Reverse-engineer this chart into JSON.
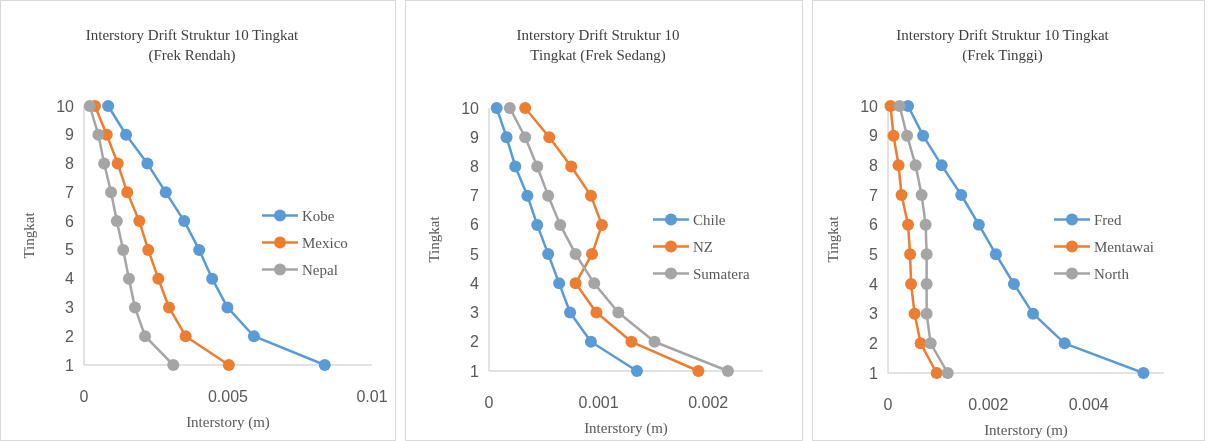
{
  "chart_data": [
    {
      "type": "line",
      "title": "Interstory Drift Struktur 10 Tingkat (Frek Rendah)",
      "xlabel": "Interstory (m)",
      "ylabel": "Tingkat",
      "xlim": [
        0,
        0.01
      ],
      "xticks": [
        0,
        0.005,
        0.01
      ],
      "ylim": [
        1,
        10
      ],
      "yticks": [
        1,
        2,
        3,
        4,
        5,
        6,
        7,
        8,
        9,
        10
      ],
      "marker": "circle",
      "legend": "right",
      "grid": false,
      "series": [
        {
          "name": "Kobe",
          "color": "#5b9bd5",
          "x": [
            0.00836,
            0.0059,
            0.00498,
            0.00445,
            0.004,
            0.00348,
            0.00284,
            0.0022,
            0.00146,
            0.00084
          ],
          "values": [
            1,
            2,
            3,
            4,
            5,
            6,
            7,
            8,
            9,
            10
          ]
        },
        {
          "name": "Mexico",
          "color": "#ed7d31",
          "x": [
            0.00503,
            0.00353,
            0.00295,
            0.00258,
            0.00223,
            0.00192,
            0.0015,
            0.00117,
            0.00079,
            0.00038
          ],
          "values": [
            1,
            2,
            3,
            4,
            5,
            6,
            7,
            8,
            9,
            10
          ]
        },
        {
          "name": "Nepal",
          "color": "#a5a5a5",
          "x": [
            0.0031,
            0.00212,
            0.00177,
            0.00156,
            0.00136,
            0.00114,
            0.00094,
            0.0007,
            0.0005,
            0.0002
          ],
          "values": [
            1,
            2,
            3,
            4,
            5,
            6,
            7,
            8,
            9,
            10
          ]
        }
      ]
    },
    {
      "type": "line",
      "title": "Interstory Drift Struktur 10 Tingkat (Frek Sedang)",
      "xlabel": "Interstory (m)",
      "ylabel": "Tingkat",
      "xlim": [
        0,
        0.0025
      ],
      "xticks": [
        0,
        0.001,
        0.002
      ],
      "ylim": [
        1,
        10
      ],
      "yticks": [
        1,
        2,
        3,
        4,
        5,
        6,
        7,
        8,
        9,
        10
      ],
      "marker": "circle",
      "legend": "right",
      "grid": false,
      "series": [
        {
          "name": "Chile",
          "color": "#5b9bd5",
          "x": [
            0.00135,
            0.00093,
            0.00074,
            0.00064,
            0.00054,
            0.00044,
            0.00035,
            0.00024,
            0.00016,
            7e-05
          ],
          "values": [
            1,
            2,
            3,
            4,
            5,
            6,
            7,
            8,
            9,
            10
          ]
        },
        {
          "name": "NZ",
          "color": "#ed7d31",
          "x": [
            0.00191,
            0.0013,
            0.00098,
            0.00079,
            0.00094,
            0.00103,
            0.00093,
            0.00075,
            0.00055,
            0.00033
          ],
          "values": [
            1,
            2,
            3,
            4,
            5,
            6,
            7,
            8,
            9,
            10
          ]
        },
        {
          "name": "Sumatera",
          "color": "#a5a5a5",
          "x": [
            0.00218,
            0.00151,
            0.00118,
            0.00096,
            0.00079,
            0.00065,
            0.00054,
            0.00044,
            0.00033,
            0.00019
          ],
          "values": [
            1,
            2,
            3,
            4,
            5,
            6,
            7,
            8,
            9,
            10
          ]
        }
      ]
    },
    {
      "type": "line",
      "title": "Interstory Drift Struktur 10 Tingkat (Frek Tinggi)",
      "xlabel": "Interstory (m)",
      "ylabel": "Tingkat",
      "xlim": [
        0,
        0.0055
      ],
      "xticks": [
        0,
        0.002,
        0.004
      ],
      "ylim": [
        1,
        10
      ],
      "yticks": [
        1,
        2,
        3,
        4,
        5,
        6,
        7,
        8,
        9,
        10
      ],
      "marker": "circle",
      "legend": "right",
      "grid": false,
      "series": [
        {
          "name": "Fred",
          "color": "#5b9bd5",
          "x": [
            0.00509,
            0.00352,
            0.00289,
            0.00251,
            0.00215,
            0.00181,
            0.00146,
            0.00107,
            0.0007,
            0.0004
          ],
          "values": [
            1,
            2,
            3,
            4,
            5,
            6,
            7,
            8,
            9,
            10
          ]
        },
        {
          "name": "Mentawai",
          "color": "#ed7d31",
          "x": [
            0.00097,
            0.00065,
            0.00053,
            0.00046,
            0.00044,
            0.0004,
            0.00027,
            0.00021,
            0.00011,
            5e-05
          ],
          "values": [
            1,
            2,
            3,
            4,
            5,
            6,
            7,
            8,
            9,
            10
          ]
        },
        {
          "name": "North",
          "color": "#a5a5a5",
          "x": [
            0.00119,
            0.00085,
            0.00077,
            0.00077,
            0.00077,
            0.00075,
            0.00067,
            0.00055,
            0.00038,
            0.00023
          ],
          "values": [
            1,
            2,
            3,
            4,
            5,
            6,
            7,
            8,
            9,
            10
          ]
        }
      ]
    }
  ]
}
